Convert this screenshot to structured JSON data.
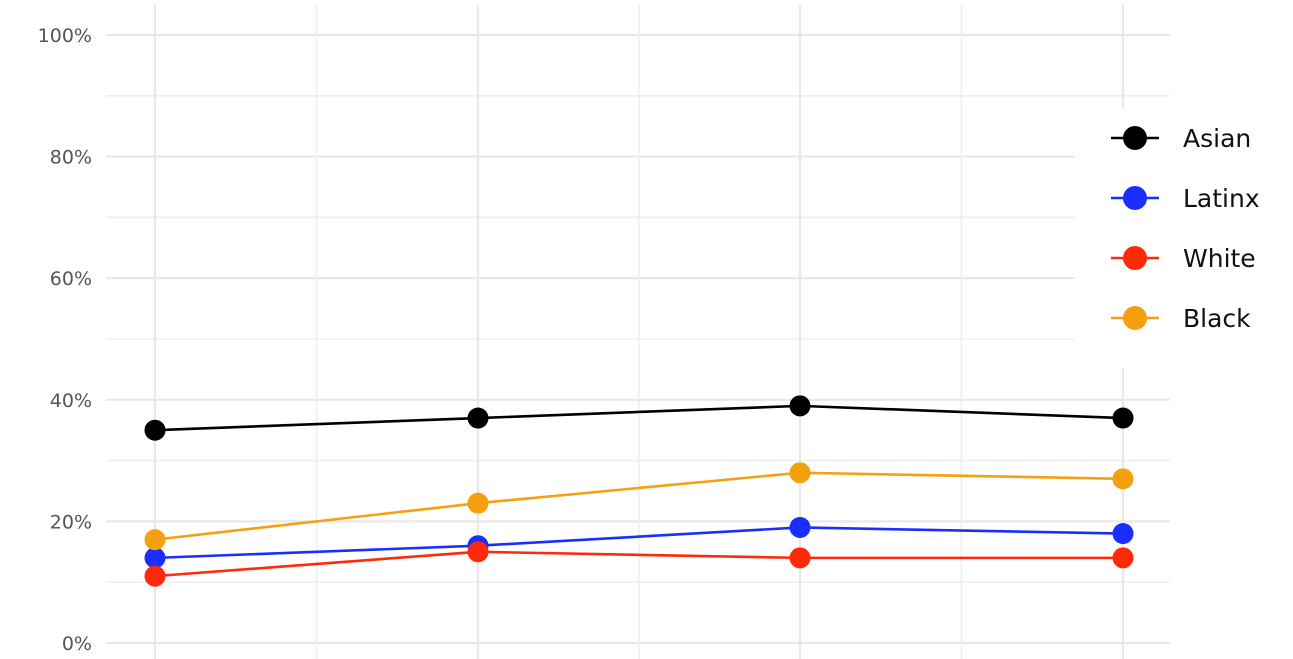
{
  "chart_data": {
    "type": "line",
    "title": "",
    "xlabel": "",
    "ylabel": "",
    "x": [
      1,
      2,
      3,
      4
    ],
    "ylim": [
      0,
      100
    ],
    "yticks": [
      0,
      20,
      40,
      60,
      80,
      100
    ],
    "ytick_labels": [
      "0%",
      "20%",
      "40%",
      "60%",
      "80%",
      "100%"
    ],
    "grid": true,
    "legend_position": "right",
    "series": [
      {
        "name": "Asian",
        "color": "#000000",
        "values": [
          35,
          37,
          39,
          37
        ]
      },
      {
        "name": "Latinx",
        "color": "#1a2fff",
        "values": [
          14,
          16,
          19,
          18
        ]
      },
      {
        "name": "White",
        "color": "#ff2a0a",
        "values": [
          11,
          15,
          14,
          14
        ]
      },
      {
        "name": "Black",
        "color": "#f5a00f",
        "values": [
          17,
          23,
          28,
          27
        ]
      }
    ]
  }
}
